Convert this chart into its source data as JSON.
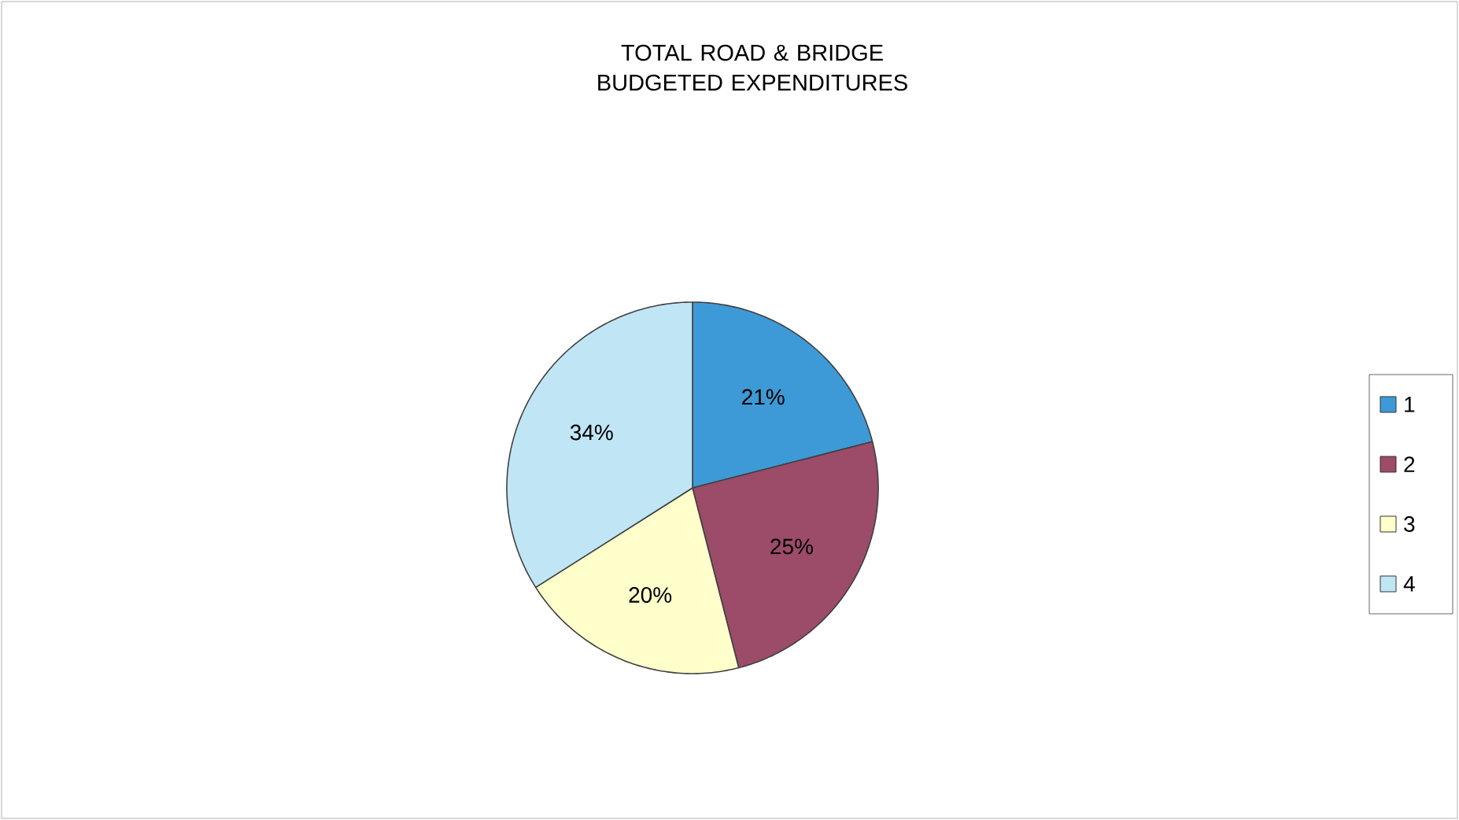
{
  "chart_data": {
    "type": "pie",
    "title": "TOTAL ROAD & BRIDGE\nBUDGETED EXPENDITURES",
    "categories": [
      "1",
      "2",
      "3",
      "4"
    ],
    "values": [
      21,
      25,
      20,
      34
    ],
    "value_labels": [
      "21%",
      "25%",
      "20%",
      "34%"
    ],
    "colors": [
      "#3d9ad6",
      "#9c4b69",
      "#ffffcc",
      "#c0e6f6"
    ],
    "legend": "right"
  }
}
